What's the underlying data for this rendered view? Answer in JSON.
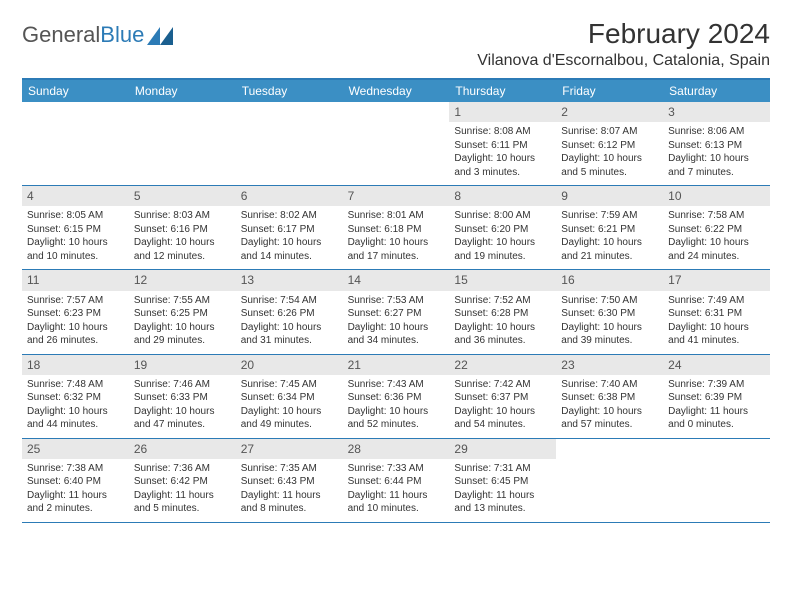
{
  "logo": {
    "text1": "General",
    "text2": "Blue"
  },
  "title": "February 2024",
  "location": "Vilanova d'Escornalbou, Catalonia, Spain",
  "colors": {
    "header_bg": "#3b8fc4",
    "border": "#2c7bb6",
    "day_header_bg": "#e8e8e8",
    "text": "#333333"
  },
  "weekdays": [
    "Sunday",
    "Monday",
    "Tuesday",
    "Wednesday",
    "Thursday",
    "Friday",
    "Saturday"
  ],
  "weeks": [
    [
      null,
      null,
      null,
      null,
      {
        "n": "1",
        "sunrise": "8:08 AM",
        "sunset": "6:11 PM",
        "daylight": "10 hours and 3 minutes."
      },
      {
        "n": "2",
        "sunrise": "8:07 AM",
        "sunset": "6:12 PM",
        "daylight": "10 hours and 5 minutes."
      },
      {
        "n": "3",
        "sunrise": "8:06 AM",
        "sunset": "6:13 PM",
        "daylight": "10 hours and 7 minutes."
      }
    ],
    [
      {
        "n": "4",
        "sunrise": "8:05 AM",
        "sunset": "6:15 PM",
        "daylight": "10 hours and 10 minutes."
      },
      {
        "n": "5",
        "sunrise": "8:03 AM",
        "sunset": "6:16 PM",
        "daylight": "10 hours and 12 minutes."
      },
      {
        "n": "6",
        "sunrise": "8:02 AM",
        "sunset": "6:17 PM",
        "daylight": "10 hours and 14 minutes."
      },
      {
        "n": "7",
        "sunrise": "8:01 AM",
        "sunset": "6:18 PM",
        "daylight": "10 hours and 17 minutes."
      },
      {
        "n": "8",
        "sunrise": "8:00 AM",
        "sunset": "6:20 PM",
        "daylight": "10 hours and 19 minutes."
      },
      {
        "n": "9",
        "sunrise": "7:59 AM",
        "sunset": "6:21 PM",
        "daylight": "10 hours and 21 minutes."
      },
      {
        "n": "10",
        "sunrise": "7:58 AM",
        "sunset": "6:22 PM",
        "daylight": "10 hours and 24 minutes."
      }
    ],
    [
      {
        "n": "11",
        "sunrise": "7:57 AM",
        "sunset": "6:23 PM",
        "daylight": "10 hours and 26 minutes."
      },
      {
        "n": "12",
        "sunrise": "7:55 AM",
        "sunset": "6:25 PM",
        "daylight": "10 hours and 29 minutes."
      },
      {
        "n": "13",
        "sunrise": "7:54 AM",
        "sunset": "6:26 PM",
        "daylight": "10 hours and 31 minutes."
      },
      {
        "n": "14",
        "sunrise": "7:53 AM",
        "sunset": "6:27 PM",
        "daylight": "10 hours and 34 minutes."
      },
      {
        "n": "15",
        "sunrise": "7:52 AM",
        "sunset": "6:28 PM",
        "daylight": "10 hours and 36 minutes."
      },
      {
        "n": "16",
        "sunrise": "7:50 AM",
        "sunset": "6:30 PM",
        "daylight": "10 hours and 39 minutes."
      },
      {
        "n": "17",
        "sunrise": "7:49 AM",
        "sunset": "6:31 PM",
        "daylight": "10 hours and 41 minutes."
      }
    ],
    [
      {
        "n": "18",
        "sunrise": "7:48 AM",
        "sunset": "6:32 PM",
        "daylight": "10 hours and 44 minutes."
      },
      {
        "n": "19",
        "sunrise": "7:46 AM",
        "sunset": "6:33 PM",
        "daylight": "10 hours and 47 minutes."
      },
      {
        "n": "20",
        "sunrise": "7:45 AM",
        "sunset": "6:34 PM",
        "daylight": "10 hours and 49 minutes."
      },
      {
        "n": "21",
        "sunrise": "7:43 AM",
        "sunset": "6:36 PM",
        "daylight": "10 hours and 52 minutes."
      },
      {
        "n": "22",
        "sunrise": "7:42 AM",
        "sunset": "6:37 PM",
        "daylight": "10 hours and 54 minutes."
      },
      {
        "n": "23",
        "sunrise": "7:40 AM",
        "sunset": "6:38 PM",
        "daylight": "10 hours and 57 minutes."
      },
      {
        "n": "24",
        "sunrise": "7:39 AM",
        "sunset": "6:39 PM",
        "daylight": "11 hours and 0 minutes."
      }
    ],
    [
      {
        "n": "25",
        "sunrise": "7:38 AM",
        "sunset": "6:40 PM",
        "daylight": "11 hours and 2 minutes."
      },
      {
        "n": "26",
        "sunrise": "7:36 AM",
        "sunset": "6:42 PM",
        "daylight": "11 hours and 5 minutes."
      },
      {
        "n": "27",
        "sunrise": "7:35 AM",
        "sunset": "6:43 PM",
        "daylight": "11 hours and 8 minutes."
      },
      {
        "n": "28",
        "sunrise": "7:33 AM",
        "sunset": "6:44 PM",
        "daylight": "11 hours and 10 minutes."
      },
      {
        "n": "29",
        "sunrise": "7:31 AM",
        "sunset": "6:45 PM",
        "daylight": "11 hours and 13 minutes."
      },
      null,
      null
    ]
  ]
}
